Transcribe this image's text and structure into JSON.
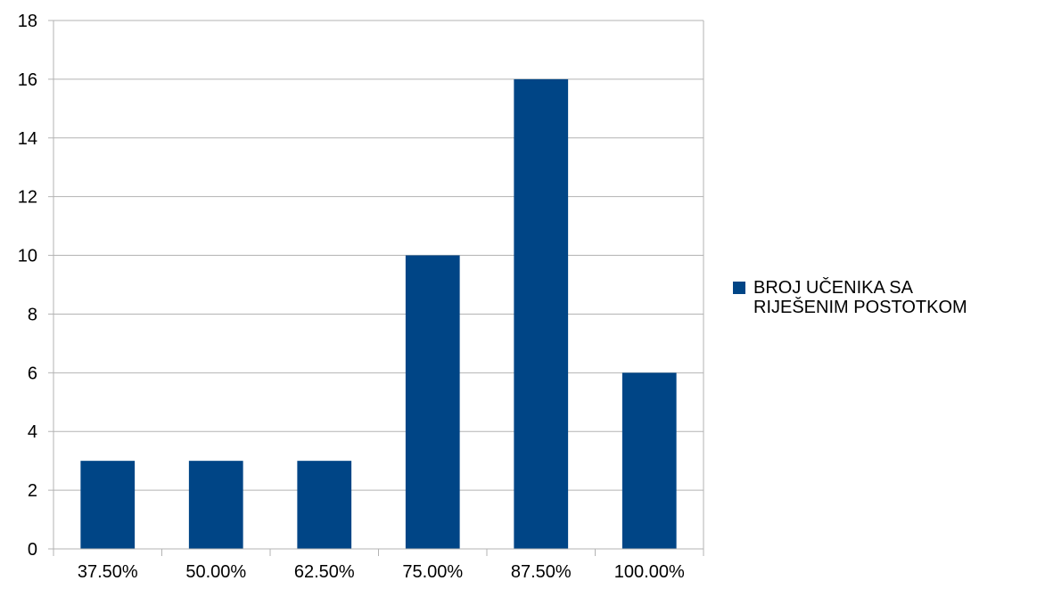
{
  "colors": {
    "bar": "#004586",
    "grid": "#b3b3b3",
    "axis": "#b3b3b3",
    "background": "#ffffff"
  },
  "chart_data": {
    "type": "bar",
    "title": "",
    "xlabel": "",
    "ylabel": "",
    "categories": [
      "37.50%",
      "50.00%",
      "62.50%",
      "75.00%",
      "87.50%",
      "100.00%"
    ],
    "series": [
      {
        "name": "BROJ UČENIKA SA\nRIJEŠENIM POSTOTKOM",
        "values": [
          3,
          3,
          3,
          10,
          16,
          6
        ]
      }
    ],
    "ylim": [
      0,
      18
    ],
    "yticks": [
      "0",
      "2",
      "4",
      "6",
      "8",
      "10",
      "12",
      "14",
      "16",
      "18"
    ],
    "grid": true,
    "legend_position": "right"
  }
}
